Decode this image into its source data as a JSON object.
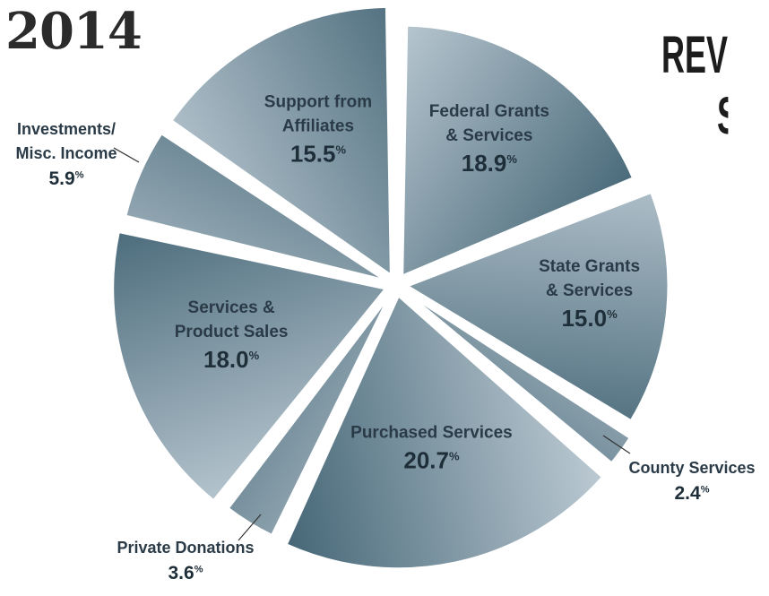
{
  "year": "2014",
  "title": {
    "line1": "REVE",
    "line2": "SU"
  },
  "colors": {
    "dark": "#456676",
    "light": "#bccad3",
    "text": "#2a3b47",
    "gap": "#ffffff"
  },
  "chart_data": {
    "type": "pie",
    "value_unit": "%",
    "slices": [
      {
        "label_lines": [
          "Federal Grants",
          "& Services"
        ],
        "value": 18.9,
        "value_text": "18.9"
      },
      {
        "label_lines": [
          "State Grants",
          "& Services"
        ],
        "value": 15.0,
        "value_text": "15.0"
      },
      {
        "label_lines": [
          "County Services"
        ],
        "value": 2.4,
        "value_text": "2.4"
      },
      {
        "label_lines": [
          "Purchased Services"
        ],
        "value": 20.7,
        "value_text": "20.7"
      },
      {
        "label_lines": [
          "Private Donations"
        ],
        "value": 3.6,
        "value_text": "3.6"
      },
      {
        "label_lines": [
          "Services &",
          "Product Sales"
        ],
        "value": 18.0,
        "value_text": "18.0"
      },
      {
        "label_lines": [
          "Investments/",
          "Misc. Income"
        ],
        "value": 5.9,
        "value_text": "5.9"
      },
      {
        "label_lines": [
          "Support from",
          "Affiliates"
        ],
        "value": 15.5,
        "value_text": "15.5"
      }
    ]
  }
}
